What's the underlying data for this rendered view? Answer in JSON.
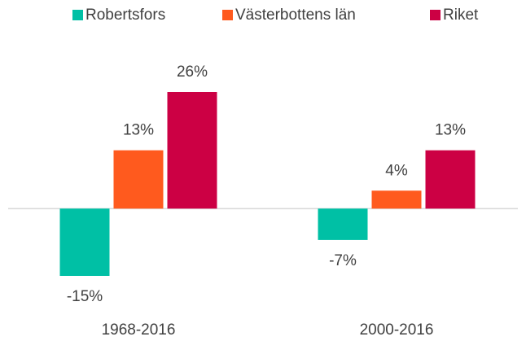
{
  "chart_data": {
    "type": "bar",
    "categories": [
      "1968-2016",
      "2000-2016"
    ],
    "series": [
      {
        "name": "Robertsfors",
        "color": "#00c0a5",
        "values": [
          -15,
          -7
        ],
        "value_labels": [
          "-15%",
          "-7%"
        ]
      },
      {
        "name": "Västerbottens län",
        "color": "#ff5a1e",
        "values": [
          13,
          4
        ],
        "value_labels": [
          "13%",
          "4%"
        ]
      },
      {
        "name": "Riket",
        "color": "#cc0044",
        "values": [
          26,
          13
        ],
        "value_labels": [
          "26%",
          "13%"
        ]
      }
    ],
    "legend": "top"
  }
}
